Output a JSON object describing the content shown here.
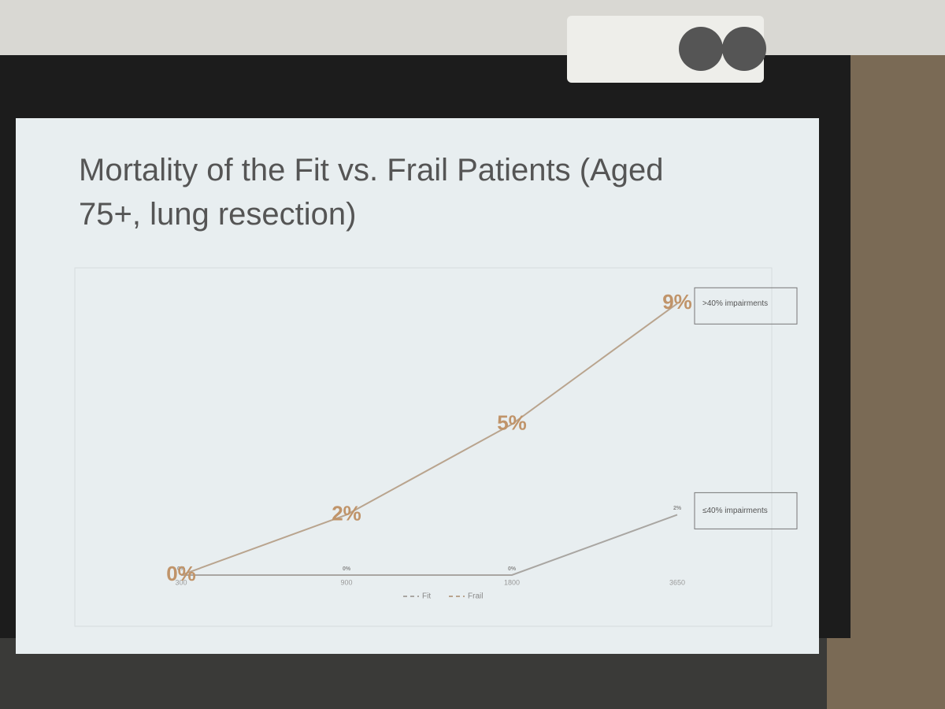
{
  "chart_data": {
    "type": "line",
    "title": "Mortality of the Fit vs. Frail Patients (Aged 75+, lung resection)",
    "categories": [
      "300",
      "900",
      "1800",
      "3650"
    ],
    "series": [
      {
        "name": "Fit",
        "color": "#a9a6a2",
        "values": [
          0,
          0,
          0,
          2
        ],
        "value_labels": [
          "0%",
          "0%",
          "0%",
          "2%"
        ]
      },
      {
        "name": "Frail",
        "color": "#b9a48e",
        "values": [
          0,
          2,
          5,
          9
        ],
        "value_labels": [
          "0%",
          "2%",
          "5%",
          "9%"
        ]
      }
    ],
    "annotations": [
      "≤40% impairments",
      ">40% impairments"
    ],
    "ylim": [
      0,
      10
    ]
  }
}
